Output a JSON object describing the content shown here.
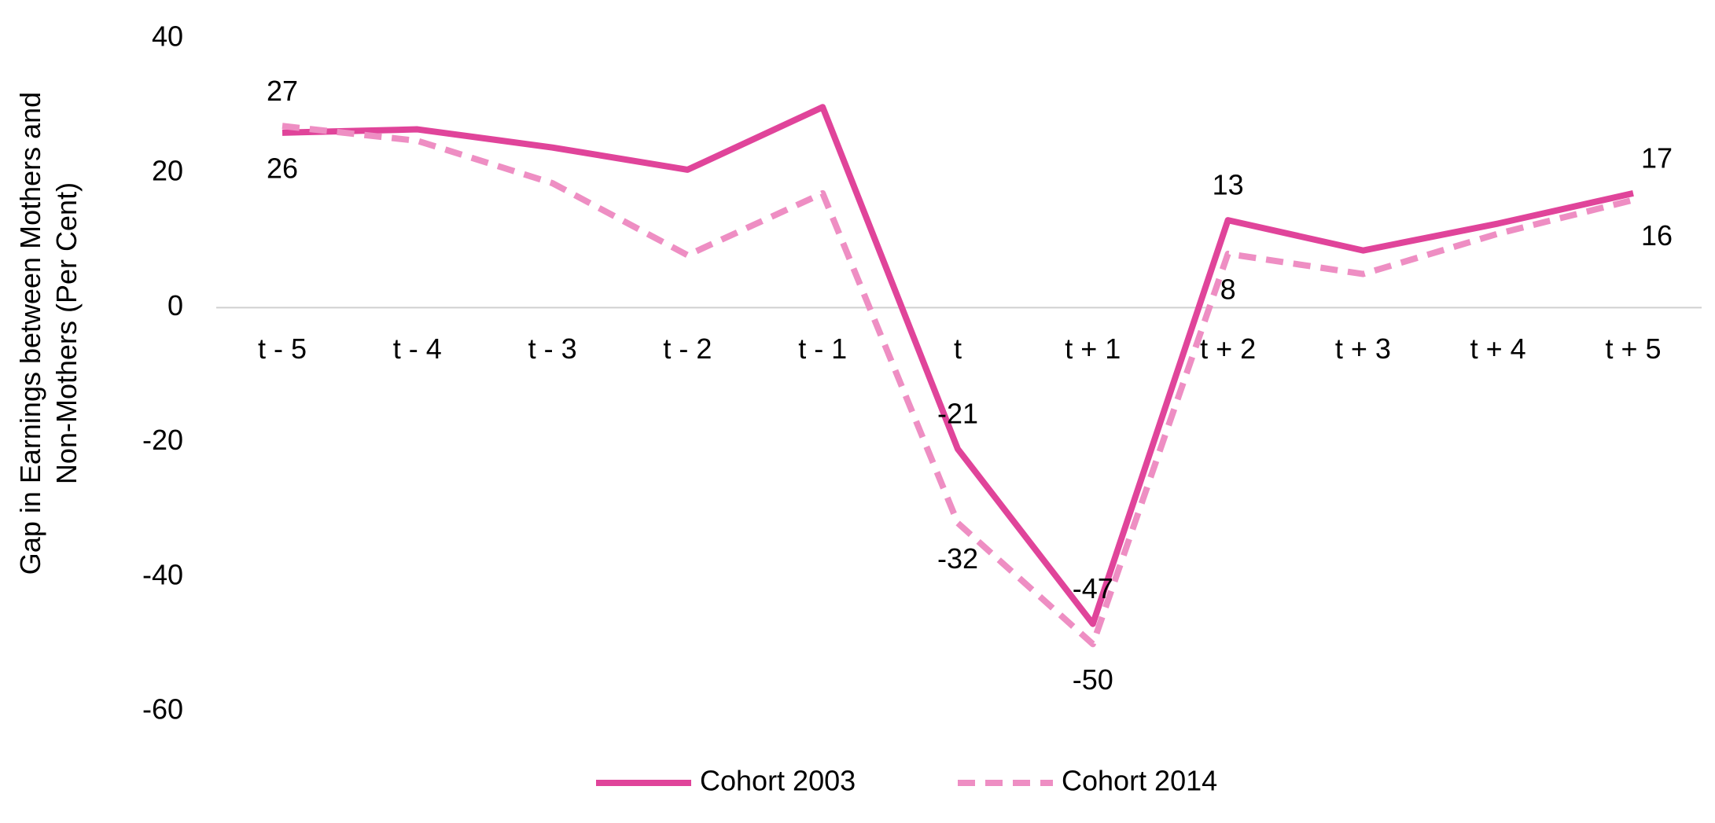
{
  "chart_data": {
    "type": "line",
    "y_label": [
      "Gap in Earnings between Mothers and",
      "Non-Mothers (Per Cent)"
    ],
    "categories": [
      "t - 5",
      "t - 4",
      "t - 3",
      "t - 2",
      "t - 1",
      "t",
      "t + 1",
      "t + 2",
      "t + 3",
      "t + 4",
      "t + 5"
    ],
    "series": [
      {
        "name": "Cohort 2003",
        "color": "#e0449a",
        "dash": false,
        "values": [
          26,
          26.5,
          23.8,
          20.5,
          29.8,
          -21,
          -47,
          13,
          8.5,
          12.5,
          17
        ],
        "value_labels": [
          "26",
          null,
          null,
          null,
          null,
          "-21",
          "-47",
          "13",
          null,
          null,
          "17"
        ]
      },
      {
        "name": "Cohort 2014",
        "color": "#ee8ec3",
        "dash": true,
        "values": [
          27,
          24.8,
          18.5,
          7.8,
          17,
          -32,
          -50,
          8,
          5,
          11,
          16
        ],
        "value_labels": [
          "27",
          null,
          null,
          null,
          null,
          "-32",
          "-50",
          "8",
          null,
          null,
          "16"
        ]
      }
    ],
    "ylim": [
      -60,
      40
    ],
    "yticks": [
      -60,
      -40,
      -20,
      0,
      20,
      40
    ],
    "grid": false
  }
}
